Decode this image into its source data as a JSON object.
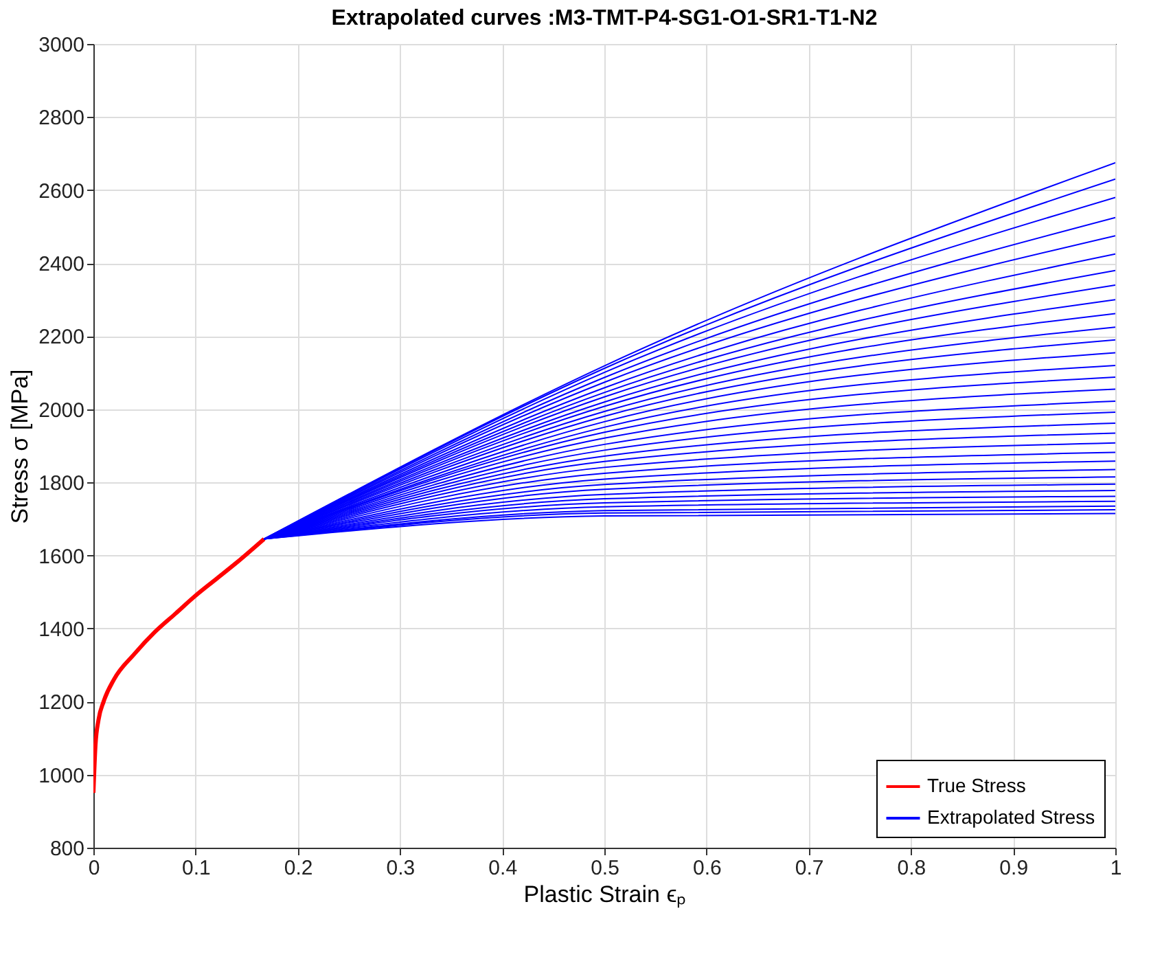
{
  "chart_data": {
    "type": "line",
    "title": "Extrapolated curves :M3-TMT-P4-SG1-O1-SR1-T1-N2",
    "xlabel": "Plastic Strain ϵₚ",
    "ylabel": "Stress σ [MPa]",
    "xlim": [
      0,
      1
    ],
    "xticks": [
      0,
      0.1,
      0.2,
      0.3,
      0.4,
      0.5,
      0.6,
      0.7,
      0.8,
      0.9,
      1
    ],
    "ylim": [
      800,
      3000
    ],
    "yticks": [
      800,
      1000,
      1200,
      1400,
      1600,
      1800,
      2000,
      2200,
      2400,
      2600,
      2800,
      3000
    ],
    "grid": true,
    "legend": "bottom right",
    "line_style": "solid",
    "marker": "none",
    "series": [
      {
        "name": "True Stress",
        "color": "#ff0000",
        "x": [
          0,
          0.002,
          0.005,
          0.01,
          0.02,
          0.04,
          0.06,
          0.08,
          0.1,
          0.12,
          0.14,
          0.167
        ],
        "values": [
          950,
          1080,
          1150,
          1200,
          1260,
          1330,
          1390,
          1440,
          1490,
          1535,
          1580,
          1645
        ]
      },
      {
        "name": "Extrapolated Stress",
        "color": "#0000ff",
        "x": [
          0.167,
          0.5,
          1
        ],
        "values": [
          1645,
          1708,
          1715
        ]
      },
      {
        "color": "#0000ff",
        "x": [
          0.167,
          0.5,
          1
        ],
        "values": [
          1645,
          1716,
          1725
        ]
      },
      {
        "color": "#0000ff",
        "x": [
          0.167,
          0.5,
          1
        ],
        "values": [
          1645,
          1723,
          1735
        ]
      },
      {
        "color": "#0000ff",
        "x": [
          0.167,
          0.5,
          1
        ],
        "values": [
          1645,
          1733,
          1748
        ]
      },
      {
        "color": "#0000ff",
        "x": [
          0.167,
          0.5,
          1
        ],
        "values": [
          1645,
          1744,
          1762
        ]
      },
      {
        "color": "#0000ff",
        "x": [
          0.167,
          0.5,
          1
        ],
        "values": [
          1645,
          1755,
          1778
        ]
      },
      {
        "color": "#0000ff",
        "x": [
          0.167,
          0.5,
          1
        ],
        "values": [
          1645,
          1767,
          1795
        ]
      },
      {
        "color": "#0000ff",
        "x": [
          0.167,
          0.5,
          1
        ],
        "values": [
          1645,
          1781,
          1815
        ]
      },
      {
        "color": "#0000ff",
        "x": [
          0.167,
          0.5,
          1
        ],
        "values": [
          1645,
          1794,
          1835
        ]
      },
      {
        "color": "#0000ff",
        "x": [
          0.167,
          0.5,
          1
        ],
        "values": [
          1645,
          1809,
          1858
        ]
      },
      {
        "color": "#0000ff",
        "x": [
          0.167,
          0.5,
          1
        ],
        "values": [
          1645,
          1825,
          1882
        ]
      },
      {
        "color": "#0000ff",
        "x": [
          0.167,
          0.5,
          1
        ],
        "values": [
          1645,
          1841,
          1908
        ]
      },
      {
        "color": "#0000ff",
        "x": [
          0.167,
          0.5,
          1
        ],
        "values": [
          1645,
          1857,
          1935
        ]
      },
      {
        "color": "#0000ff",
        "x": [
          0.167,
          0.5,
          1
        ],
        "values": [
          1645,
          1872,
          1962
        ]
      },
      {
        "color": "#0000ff",
        "x": [
          0.167,
          0.5,
          1
        ],
        "values": [
          1645,
          1888,
          1992
        ]
      },
      {
        "color": "#0000ff",
        "x": [
          0.167,
          0.5,
          1
        ],
        "values": [
          1645,
          1904,
          2022
        ]
      },
      {
        "color": "#0000ff",
        "x": [
          0.167,
          0.5,
          1
        ],
        "values": [
          1645,
          1921,
          2055
        ]
      },
      {
        "color": "#0000ff",
        "x": [
          0.167,
          0.5,
          1
        ],
        "values": [
          1645,
          1937,
          2088
        ]
      },
      {
        "color": "#0000ff",
        "x": [
          0.167,
          0.5,
          1
        ],
        "values": [
          1645,
          1951,
          2120
        ]
      },
      {
        "color": "#0000ff",
        "x": [
          0.167,
          0.5,
          1
        ],
        "values": [
          1645,
          1966,
          2155
        ]
      },
      {
        "color": "#0000ff",
        "x": [
          0.167,
          0.5,
          1
        ],
        "values": [
          1645,
          1981,
          2190
        ]
      },
      {
        "color": "#0000ff",
        "x": [
          0.167,
          0.5,
          1
        ],
        "values": [
          1645,
          1994,
          2225
        ]
      },
      {
        "color": "#0000ff",
        "x": [
          0.167,
          0.5,
          1
        ],
        "values": [
          1645,
          2008,
          2262
        ]
      },
      {
        "color": "#0000ff",
        "x": [
          0.167,
          0.5,
          1
        ],
        "values": [
          1645,
          2020,
          2300
        ]
      },
      {
        "color": "#0000ff",
        "x": [
          0.167,
          0.5,
          1
        ],
        "values": [
          1645,
          2034,
          2340
        ]
      },
      {
        "color": "#0000ff",
        "x": [
          0.167,
          0.5,
          1
        ],
        "values": [
          1645,
          2046,
          2380
        ]
      },
      {
        "color": "#0000ff",
        "x": [
          0.167,
          0.5,
          1
        ],
        "values": [
          1645,
          2059,
          2425
        ]
      },
      {
        "color": "#0000ff",
        "x": [
          0.167,
          0.5,
          1
        ],
        "values": [
          1645,
          2074,
          2475
        ]
      },
      {
        "color": "#0000ff",
        "x": [
          0.167,
          0.5,
          1
        ],
        "values": [
          1645,
          2087,
          2525
        ]
      },
      {
        "color": "#0000ff",
        "x": [
          0.167,
          0.5,
          1
        ],
        "values": [
          1645,
          2101,
          2580
        ]
      },
      {
        "color": "#0000ff",
        "x": [
          0.167,
          0.5,
          1
        ],
        "values": [
          1645,
          2112,
          2630
        ]
      },
      {
        "color": "#0000ff",
        "x": [
          0.167,
          0.5,
          1
        ],
        "values": [
          1645,
          2119,
          2675
        ]
      }
    ]
  }
}
